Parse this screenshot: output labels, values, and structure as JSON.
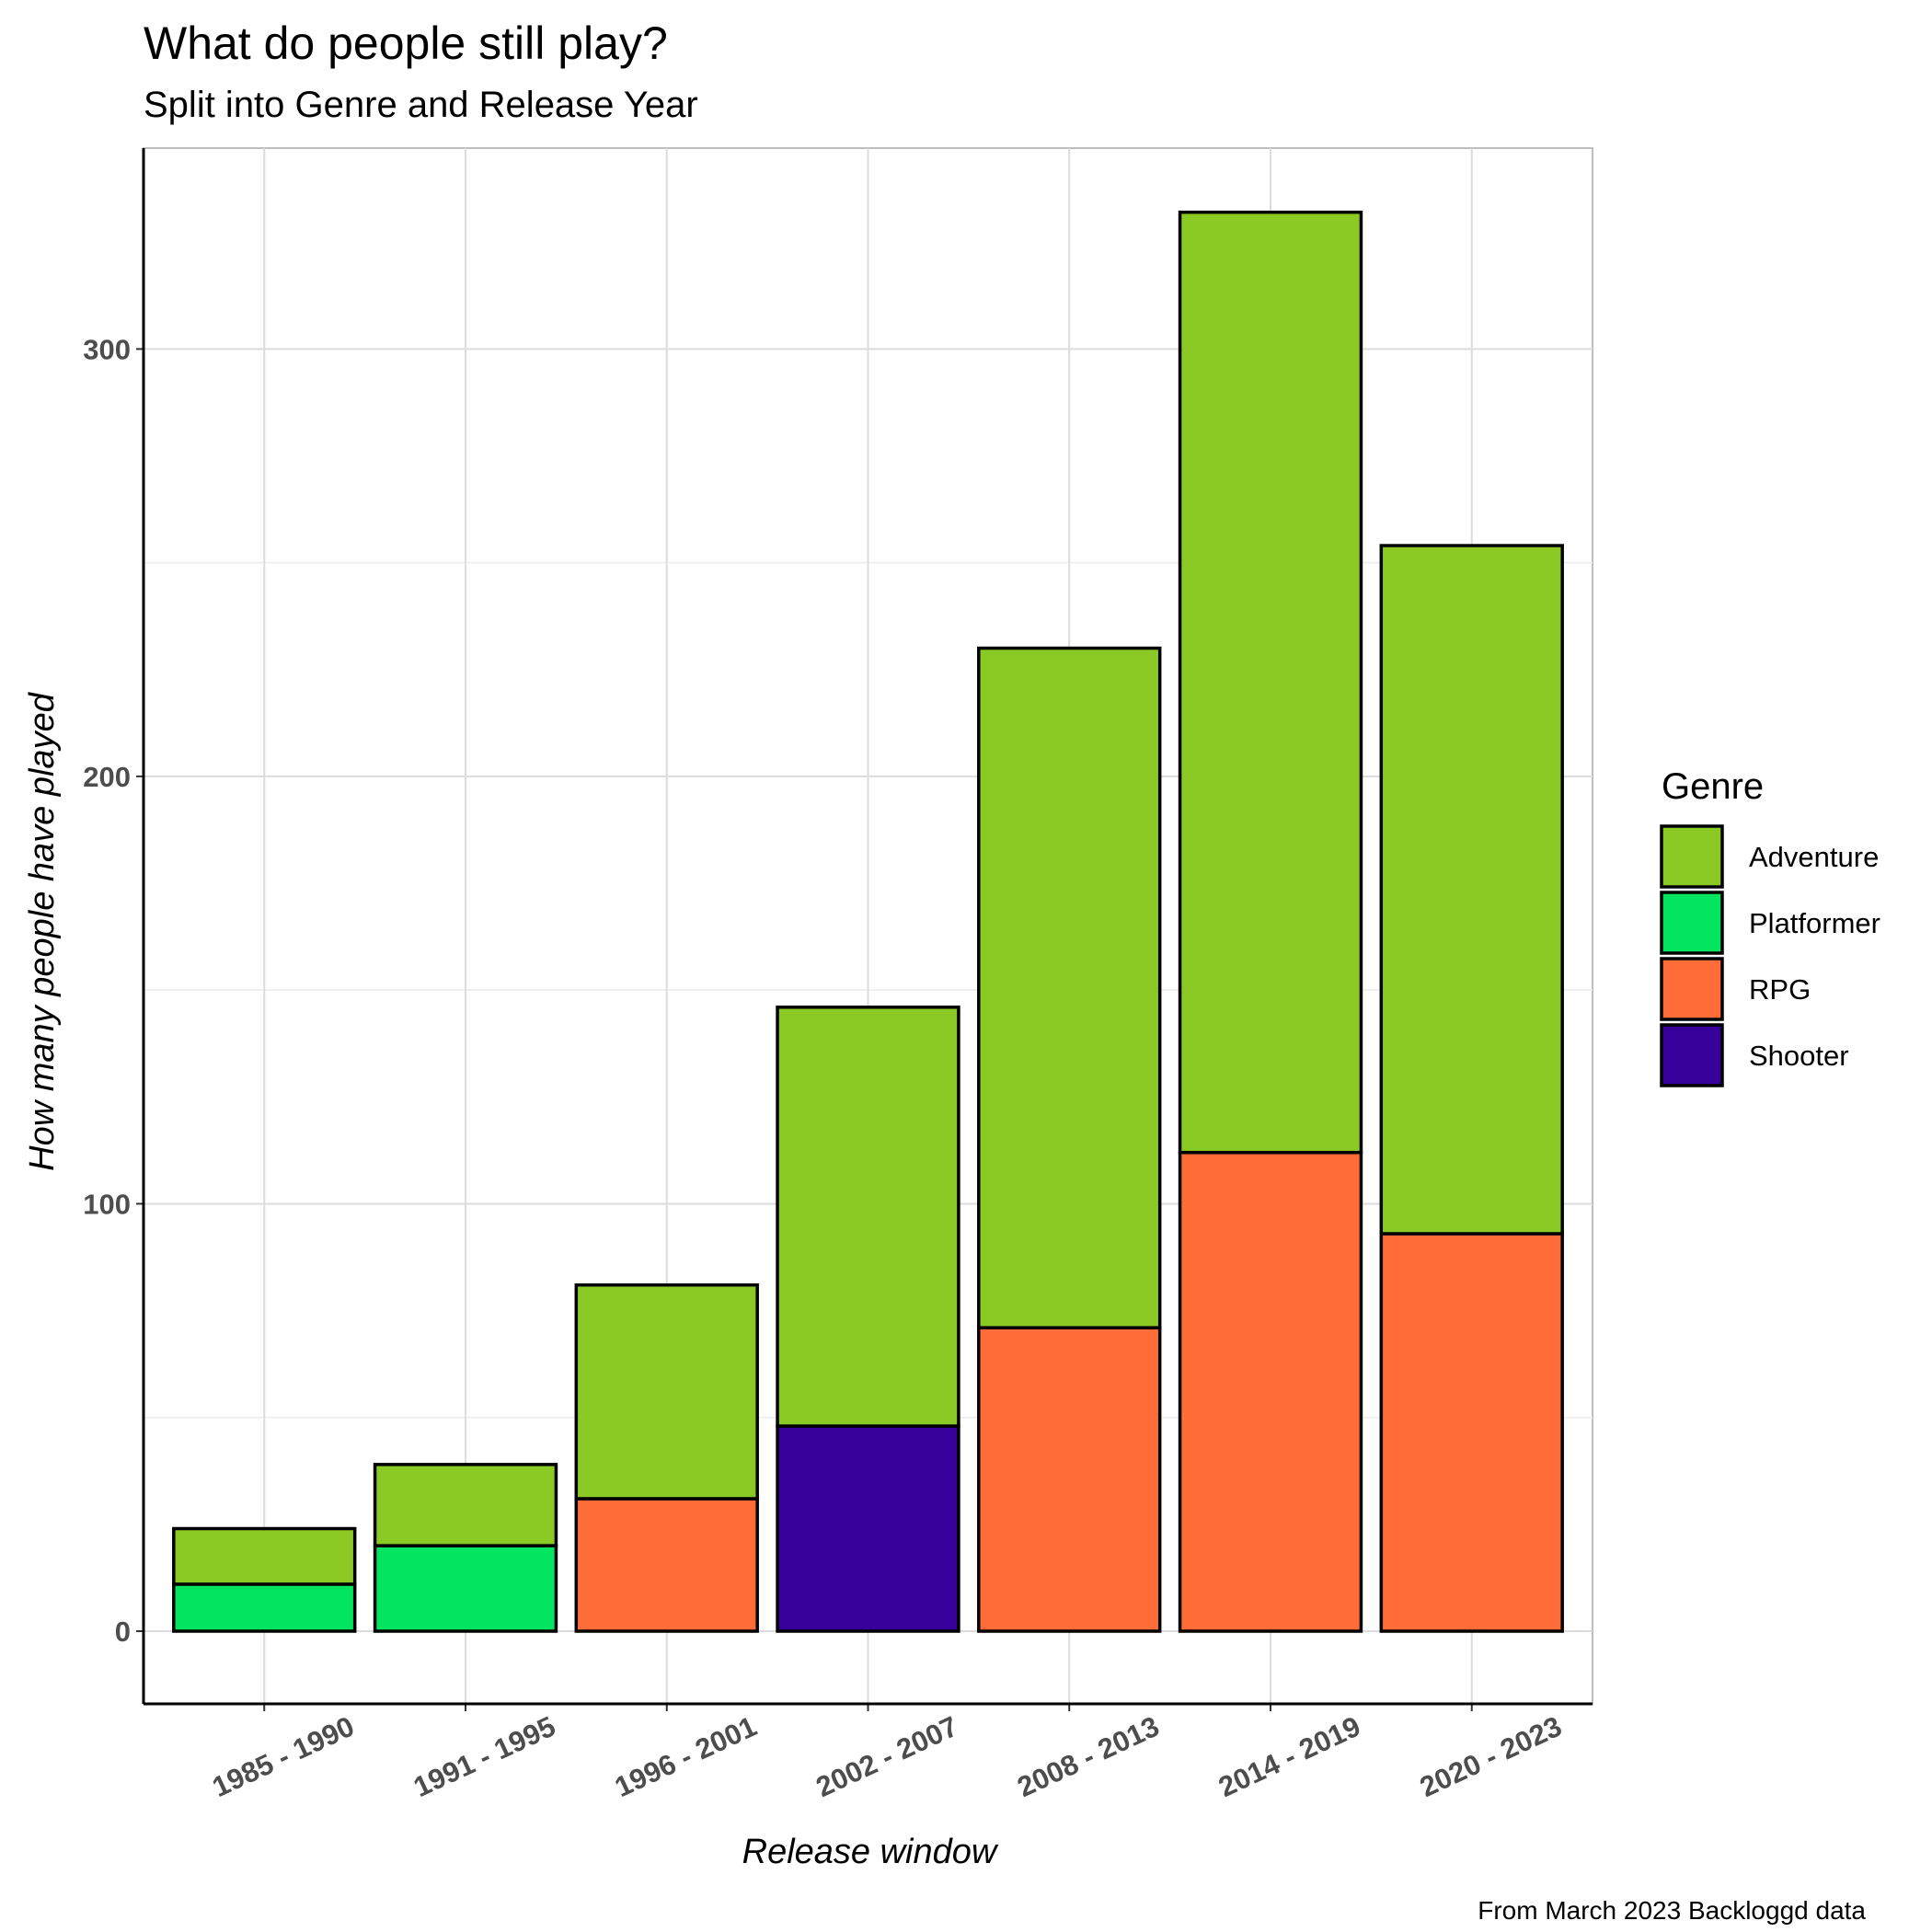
{
  "chart_data": {
    "type": "bar",
    "stacked": true,
    "title": "What do people still play?",
    "subtitle": "Split into Genre and Release Year",
    "caption": "From March 2023 Backloggd data",
    "xlabel": "Release window",
    "ylabel": "How many people have played",
    "ylim": [
      -17,
      347
    ],
    "yticks": [
      0,
      100,
      200,
      300
    ],
    "grid": true,
    "legend_title": "Genre",
    "legend_position": "right",
    "categories": [
      "1985 - 1990",
      "1991 - 1995",
      "1996 - 2001",
      "2002 - 2007",
      "2008 - 2013",
      "2014 - 2019",
      "2020 - 2023"
    ],
    "legend": [
      {
        "name": "Adventure",
        "color": "#8BC925"
      },
      {
        "name": "Platformer",
        "color": "#03E45F"
      },
      {
        "name": "RPG",
        "color": "#FF6C37"
      },
      {
        "name": "Shooter",
        "color": "#38009A"
      }
    ],
    "bars": [
      {
        "category": "1985 - 1990",
        "segments": [
          {
            "genre": "Platformer",
            "value": 11
          },
          {
            "genre": "Adventure",
            "value": 13
          }
        ]
      },
      {
        "category": "1991 - 1995",
        "segments": [
          {
            "genre": "Platformer",
            "value": 20
          },
          {
            "genre": "Adventure",
            "value": 19
          }
        ]
      },
      {
        "category": "1996 - 2001",
        "segments": [
          {
            "genre": "RPG",
            "value": 31
          },
          {
            "genre": "Adventure",
            "value": 50
          }
        ]
      },
      {
        "category": "2002 - 2007",
        "segments": [
          {
            "genre": "Shooter",
            "value": 48
          },
          {
            "genre": "Adventure",
            "value": 98
          }
        ]
      },
      {
        "category": "2008 - 2013",
        "segments": [
          {
            "genre": "RPG",
            "value": 71
          },
          {
            "genre": "Adventure",
            "value": 159
          }
        ]
      },
      {
        "category": "2014 - 2019",
        "segments": [
          {
            "genre": "RPG",
            "value": 112
          },
          {
            "genre": "Adventure",
            "value": 220
          }
        ]
      },
      {
        "category": "2020 - 2023",
        "segments": [
          {
            "genre": "RPG",
            "value": 93
          },
          {
            "genre": "Adventure",
            "value": 161
          }
        ]
      }
    ]
  }
}
